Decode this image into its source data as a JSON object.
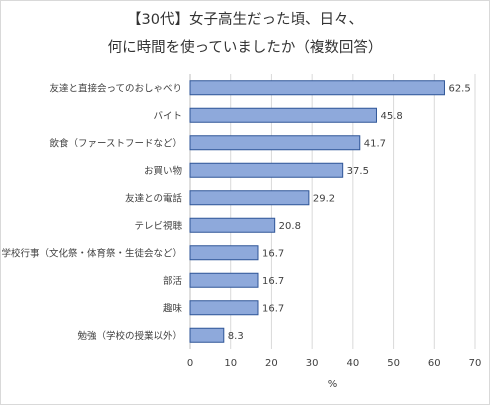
{
  "chart_data": {
    "type": "bar",
    "orientation": "horizontal",
    "title": [
      "【30代】女子高生だった頃、日々、",
      "何に時間を使っていましたか（複数回答）"
    ],
    "xlabel": "%",
    "ylabel": "",
    "xlim": [
      0,
      70
    ],
    "xticks": [
      0,
      10,
      20,
      30,
      40,
      50,
      60,
      70
    ],
    "grid": true,
    "legend": "none",
    "categories": [
      "友達と直接会ってのおしゃべり",
      "バイト",
      "飲食（ファーストフードなど）",
      "お買い物",
      "友達との電話",
      "テレビ視聴",
      "学校行事（文化祭・体育祭・生徒会など）",
      "部活",
      "趣味",
      "勉強（学校の授業以外）"
    ],
    "values": [
      62.5,
      45.8,
      41.7,
      37.5,
      29.2,
      20.8,
      16.7,
      16.7,
      16.7,
      8.3
    ],
    "data_labels": [
      "62.5",
      "45.8",
      "41.7",
      "37.5",
      "29.2",
      "20.8",
      "16.7",
      "16.7",
      "16.7",
      "8.3"
    ],
    "colors": {
      "bar_fill": "#8ea9db",
      "bar_stroke": "#2f5597",
      "grid": "#d9d9d9",
      "axis": "#bfbfbf"
    }
  }
}
